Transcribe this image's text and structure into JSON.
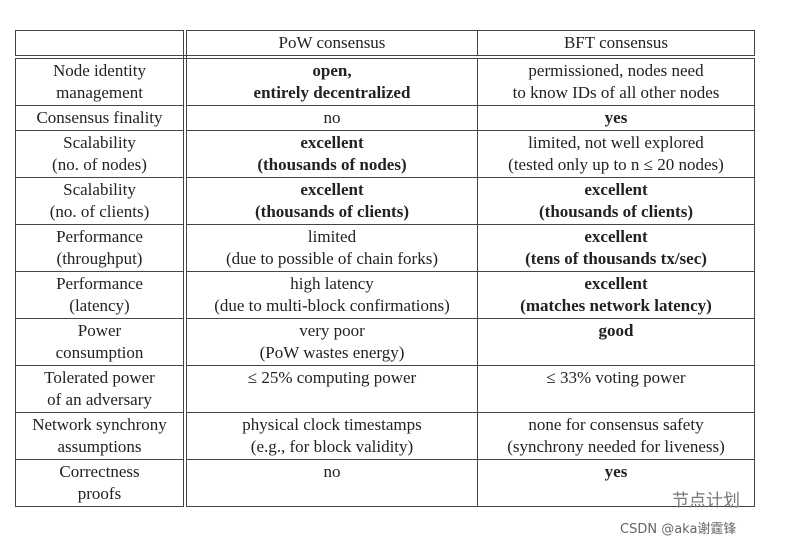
{
  "table": {
    "header": [
      "PoW consensus",
      "BFT consensus"
    ],
    "rows": [
      {
        "label": [
          "Node identity",
          "management"
        ],
        "pow": {
          "lines": [
            "open,",
            "entirely decentralized"
          ],
          "bold": true
        },
        "bft": {
          "lines": [
            "permissioned, nodes need",
            "to know IDs of all other nodes"
          ],
          "bold": false
        }
      },
      {
        "label": [
          "Consensus finality"
        ],
        "pow": {
          "lines": [
            "no"
          ],
          "bold": false
        },
        "bft": {
          "lines": [
            "yes"
          ],
          "bold": true
        }
      },
      {
        "label": [
          "Scalability",
          "(no. of nodes)"
        ],
        "pow": {
          "lines": [
            "excellent",
            "(thousands of nodes)"
          ],
          "bold": true
        },
        "bft": {
          "lines": [
            "limited, not well explored",
            "(tested only up to n ≤ 20 nodes)"
          ],
          "bold": false
        }
      },
      {
        "label": [
          "Scalability",
          "(no. of clients)"
        ],
        "pow": {
          "lines": [
            "excellent",
            "(thousands of clients)"
          ],
          "bold": true
        },
        "bft": {
          "lines": [
            "excellent",
            "(thousands of clients)"
          ],
          "bold": true
        }
      },
      {
        "label": [
          "Performance",
          "(throughput)"
        ],
        "pow": {
          "lines": [
            "limited",
            "(due to possible of chain forks)"
          ],
          "bold": false
        },
        "bft": {
          "lines": [
            "excellent",
            "(tens of thousands tx/sec)"
          ],
          "bold": true
        }
      },
      {
        "label": [
          "Performance",
          "(latency)"
        ],
        "pow": {
          "lines": [
            "high latency",
            "(due to multi-block confirmations)"
          ],
          "bold": false
        },
        "bft": {
          "lines": [
            "excellent",
            "(matches network latency)"
          ],
          "bold": true
        }
      },
      {
        "label": [
          "Power",
          "consumption"
        ],
        "pow": {
          "lines": [
            "very poor",
            "(PoW wastes energy)"
          ],
          "bold": false
        },
        "bft": {
          "lines": [
            "good"
          ],
          "bold": true
        }
      },
      {
        "label": [
          "Tolerated power",
          "of an adversary"
        ],
        "pow": {
          "lines": [
            "≤ 25% computing power"
          ],
          "bold": false
        },
        "bft": {
          "lines": [
            "≤ 33% voting power"
          ],
          "bold": false
        }
      },
      {
        "label": [
          "Network synchrony",
          "assumptions"
        ],
        "pow": {
          "lines": [
            "physical clock timestamps",
            "(e.g., for block validity)"
          ],
          "bold": false
        },
        "bft": {
          "lines": [
            "none for consensus safety",
            "(synchrony needed for liveness)"
          ],
          "bold": false
        }
      },
      {
        "label": [
          "Correctness",
          "proofs"
        ],
        "pow": {
          "lines": [
            "no"
          ],
          "bold": false
        },
        "bft": {
          "lines": [
            "yes"
          ],
          "bold": true
        }
      }
    ]
  },
  "watermark": {
    "channel": "节点计划",
    "credit": "CSDN @aka谢霆锋"
  }
}
